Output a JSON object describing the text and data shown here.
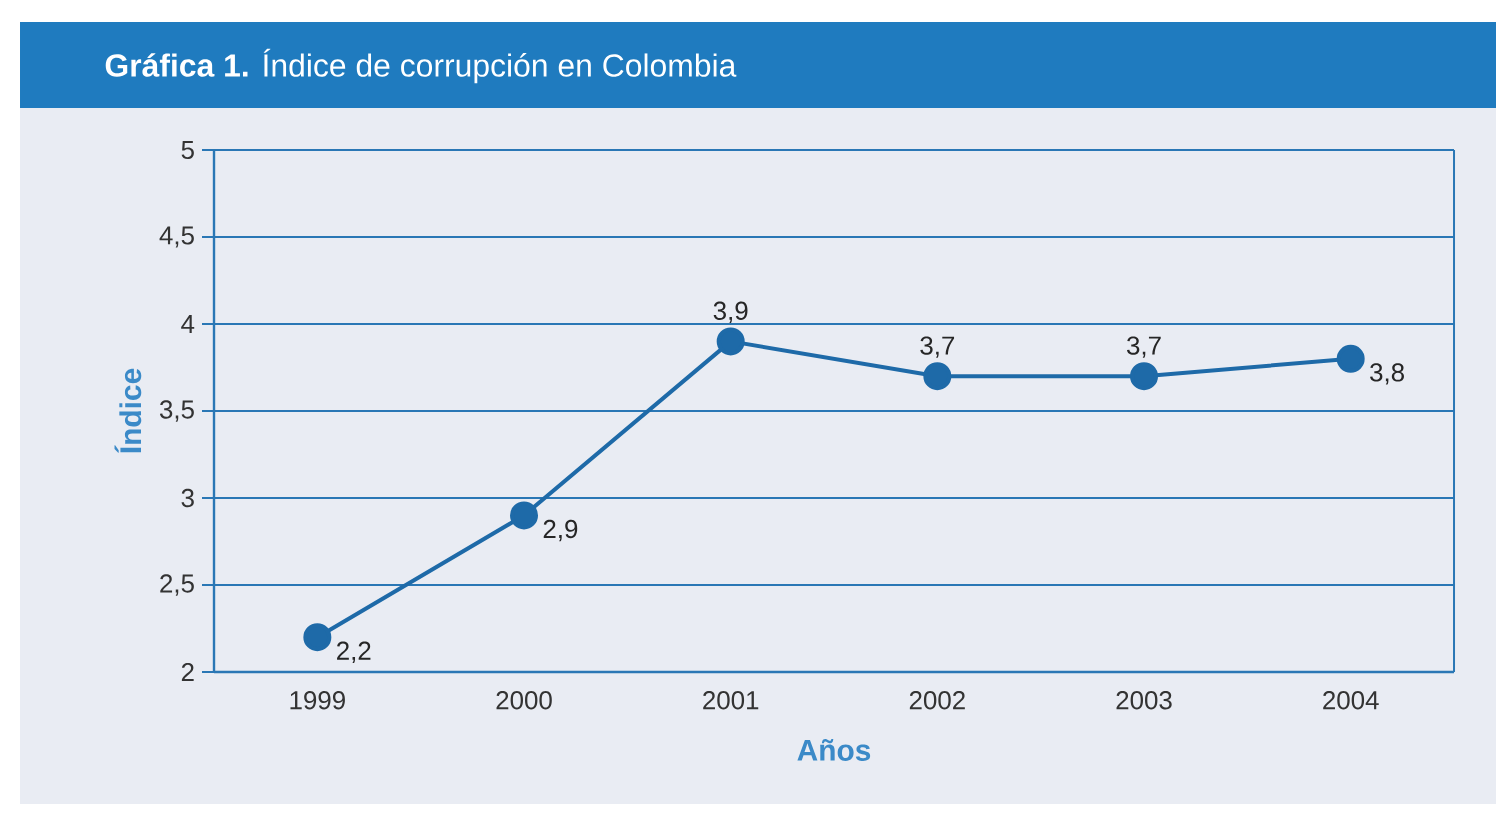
{
  "chart_data": {
    "type": "line",
    "title": "**Gráfica 1.** Índice de corrupción en Colombia",
    "xlabel": "Años",
    "ylabel": "Índice",
    "categories": [
      "1999",
      "2000",
      "2001",
      "2002",
      "2003",
      "2004"
    ],
    "series": [
      {
        "color": "#1e6aa8",
        "values": [
          2.2,
          2.9,
          3.9,
          3.7,
          3.7,
          3.8
        ],
        "value_labels": [
          "2,2",
          "2,9",
          "3,9",
          "3,7",
          "3,7",
          "3,8"
        ]
      }
    ],
    "ylim": [
      2,
      5
    ],
    "yticks": [
      2,
      {
        "value": 2.5,
        "label": "2,5"
      },
      3,
      {
        "value": 3.5,
        "label": "3,5"
      },
      4,
      {
        "value": 4.5,
        "label": "4,5"
      },
      5
    ],
    "grid": "y",
    "marker": "circle",
    "line_style": "solid"
  }
}
